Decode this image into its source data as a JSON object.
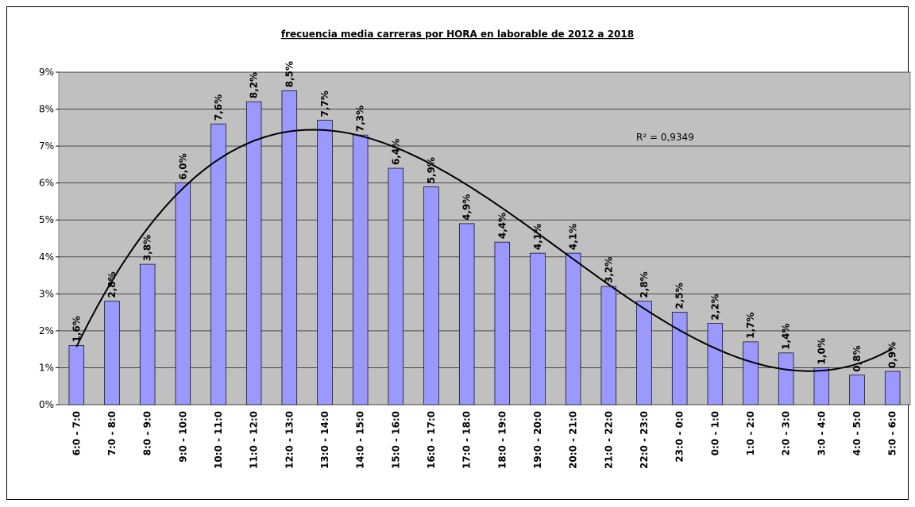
{
  "chart_data": {
    "type": "bar",
    "title": "frecuencia media carreras por HORA en laborable de 2012 a 2018",
    "categories": [
      "6:0 - 7:0",
      "7:0 - 8:0",
      "8:0 - 9:0",
      "9:0 - 10:0",
      "10:0 - 11:0",
      "11:0 - 12:0",
      "12:0 - 13:0",
      "13:0 - 14:0",
      "14:0 - 15:0",
      "15:0 - 16:0",
      "16:0 - 17:0",
      "17:0 - 18:0",
      "18:0 - 19:0",
      "19:0 - 20:0",
      "20:0 - 21:0",
      "21:0 - 22:0",
      "22:0 - 23:0",
      "23:0 - 0:0",
      "0:0 - 1:0",
      "1:0 - 2:0",
      "2:0 - 3:0",
      "3:0 - 4:0",
      "4:0 - 5:0",
      "5:0 - 6:0"
    ],
    "values": [
      1.6,
      2.8,
      3.8,
      6.0,
      7.6,
      8.2,
      8.5,
      7.7,
      7.3,
      6.4,
      5.9,
      4.9,
      4.4,
      4.1,
      4.1,
      3.2,
      2.8,
      2.5,
      2.2,
      1.7,
      1.4,
      1.0,
      0.8,
      0.9
    ],
    "value_labels": [
      "1,6%",
      "2,8%",
      "3,8%",
      "6,0%",
      "7,6%",
      "8,2%",
      "8,5%",
      "7,7%",
      "7,3%",
      "6,4%",
      "5,9%",
      "4,9%",
      "4,4%",
      "4,1%",
      "4,1%",
      "3,2%",
      "2,8%",
      "2,5%",
      "2,2%",
      "1,7%",
      "1,4%",
      "1,0%",
      "0,8%",
      "0,9%"
    ],
    "color": "#9999ff",
    "ylim": [
      0,
      9
    ],
    "yticks": [
      {
        "value": 0,
        "label": "0%"
      },
      {
        "value": 1,
        "label": "1%"
      },
      {
        "value": 2,
        "label": "2%"
      },
      {
        "value": 3,
        "label": "3%"
      },
      {
        "value": 4,
        "label": "4%"
      },
      {
        "value": 5,
        "label": "5%"
      },
      {
        "value": 6,
        "label": "6%"
      },
      {
        "value": 7,
        "label": "7%"
      },
      {
        "value": 8,
        "label": "8%"
      },
      {
        "value": 9,
        "label": "9%"
      }
    ],
    "grid": true,
    "trendline": {
      "type": "polynomial",
      "order": 3,
      "annotation": "R² = 0,9349"
    }
  }
}
